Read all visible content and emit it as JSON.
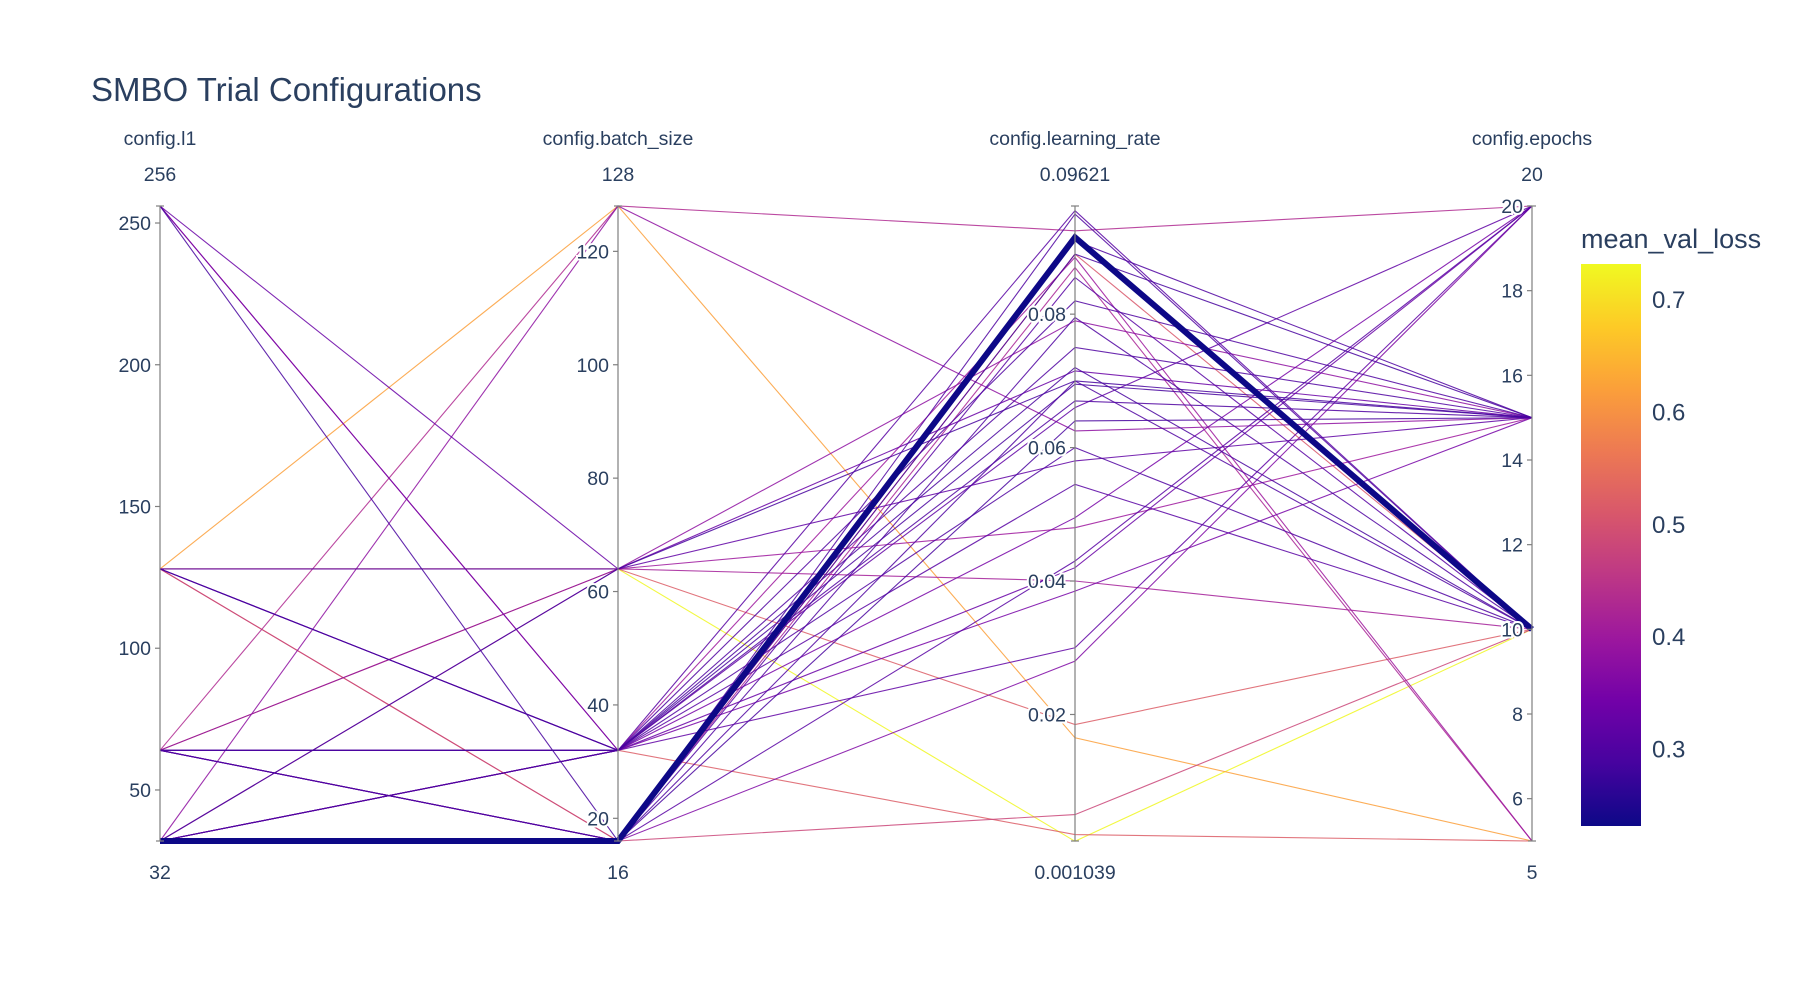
{
  "chart_data": {
    "type": "parallel_coordinates",
    "title": "SMBO Trial Configurations",
    "color_variable": "mean_val_loss",
    "colorscale": "plasma",
    "color_range": [
      0.232,
      0.732
    ],
    "colorbar_ticks": [
      0.3,
      0.4,
      0.5,
      0.6,
      0.7
    ],
    "dimensions": [
      {
        "label": "config.l1",
        "range": [
          32,
          256
        ],
        "min_label": "32",
        "max_label": "256",
        "ticks": [
          50,
          100,
          150,
          200,
          250
        ]
      },
      {
        "label": "config.batch_size",
        "range": [
          16,
          128
        ],
        "min_label": "16",
        "max_label": "128",
        "ticks": [
          20,
          40,
          60,
          80,
          100,
          120
        ]
      },
      {
        "label": "config.learning_rate",
        "range": [
          0.001039,
          0.09621
        ],
        "min_label": "0.001039",
        "max_label": "0.09621",
        "ticks": [
          0.02,
          0.04,
          0.06,
          0.08
        ]
      },
      {
        "label": "config.epochs",
        "range": [
          5,
          20
        ],
        "min_label": "5",
        "max_label": "20",
        "ticks": [
          6,
          8,
          10,
          12,
          14,
          16,
          18,
          20
        ]
      }
    ],
    "highlighted_trial": 0,
    "trials": [
      {
        "l1": 32,
        "batch_size": 16,
        "learning_rate": 0.0915,
        "epochs": 10,
        "mean_val_loss": 0.232
      },
      {
        "l1": 32,
        "batch_size": 16,
        "learning_rate": 0.0795,
        "epochs": 10,
        "mean_val_loss": 0.3
      },
      {
        "l1": 32,
        "batch_size": 64,
        "learning_rate": 0.07,
        "epochs": 15,
        "mean_val_loss": 0.29
      },
      {
        "l1": 32,
        "batch_size": 128,
        "learning_rate": 0.0625,
        "epochs": 15,
        "mean_val_loss": 0.38
      },
      {
        "l1": 32,
        "batch_size": 32,
        "learning_rate": 0.0545,
        "epochs": 10,
        "mean_val_loss": 0.31
      },
      {
        "l1": 32,
        "batch_size": 32,
        "learning_rate": 0.042,
        "epochs": 20,
        "mean_val_loss": 0.33
      },
      {
        "l1": 64,
        "batch_size": 16,
        "learning_rate": 0.091,
        "epochs": 15,
        "mean_val_loss": 0.3
      },
      {
        "l1": 64,
        "batch_size": 16,
        "learning_rate": 0.0855,
        "epochs": 10,
        "mean_val_loss": 0.31
      },
      {
        "l1": 64,
        "batch_size": 32,
        "learning_rate": 0.075,
        "epochs": 15,
        "mean_val_loss": 0.3
      },
      {
        "l1": 64,
        "batch_size": 32,
        "learning_rate": 0.066,
        "epochs": 20,
        "mean_val_loss": 0.32
      },
      {
        "l1": 64,
        "batch_size": 128,
        "learning_rate": 0.0925,
        "epochs": 20,
        "mean_val_loss": 0.43
      },
      {
        "l1": 64,
        "batch_size": 64,
        "learning_rate": 0.0185,
        "epochs": 10,
        "mean_val_loss": 0.52
      },
      {
        "l1": 128,
        "batch_size": 32,
        "learning_rate": 0.0695,
        "epochs": 15,
        "mean_val_loss": 0.29
      },
      {
        "l1": 128,
        "batch_size": 32,
        "learning_rate": 0.0955,
        "epochs": 10,
        "mean_val_loss": 0.31
      },
      {
        "l1": 128,
        "batch_size": 64,
        "learning_rate": 0.058,
        "epochs": 15,
        "mean_val_loss": 0.32
      },
      {
        "l1": 128,
        "batch_size": 128,
        "learning_rate": 0.0165,
        "epochs": 5,
        "mean_val_loss": 0.62
      },
      {
        "l1": 128,
        "batch_size": 64,
        "learning_rate": 0.001,
        "epochs": 10,
        "mean_val_loss": 0.73
      },
      {
        "l1": 128,
        "batch_size": 16,
        "learning_rate": 0.005,
        "epochs": 10,
        "mean_val_loss": 0.48
      },
      {
        "l1": 256,
        "batch_size": 32,
        "learning_rate": 0.0885,
        "epochs": 5,
        "mean_val_loss": 0.4
      },
      {
        "l1": 256,
        "batch_size": 64,
        "learning_rate": 0.0715,
        "epochs": 15,
        "mean_val_loss": 0.33
      },
      {
        "l1": 256,
        "batch_size": 32,
        "learning_rate": 0.0495,
        "epochs": 20,
        "mean_val_loss": 0.35
      },
      {
        "l1": 256,
        "batch_size": 16,
        "learning_rate": 0.089,
        "epochs": 15,
        "mean_val_loss": 0.29
      },
      {
        "l1": 32,
        "batch_size": 16,
        "learning_rate": 0.028,
        "epochs": 20,
        "mean_val_loss": 0.36
      },
      {
        "l1": 32,
        "batch_size": 64,
        "learning_rate": 0.04,
        "epochs": 10,
        "mean_val_loss": 0.41
      },
      {
        "l1": 64,
        "batch_size": 16,
        "learning_rate": 0.087,
        "epochs": 5,
        "mean_val_loss": 0.42
      },
      {
        "l1": 128,
        "batch_size": 16,
        "learning_rate": 0.089,
        "epochs": 10,
        "mean_val_loss": 0.51
      },
      {
        "l1": 64,
        "batch_size": 32,
        "learning_rate": 0.072,
        "epochs": 10,
        "mean_val_loss": 0.29
      },
      {
        "l1": 32,
        "batch_size": 32,
        "learning_rate": 0.0385,
        "epochs": 15,
        "mean_val_loss": 0.35
      },
      {
        "l1": 64,
        "batch_size": 64,
        "learning_rate": 0.079,
        "epochs": 15,
        "mean_val_loss": 0.38
      },
      {
        "l1": 128,
        "batch_size": 64,
        "learning_rate": 0.048,
        "epochs": 15,
        "mean_val_loss": 0.4
      },
      {
        "l1": 64,
        "batch_size": 16,
        "learning_rate": 0.043,
        "epochs": 20,
        "mean_val_loss": 0.31
      },
      {
        "l1": 32,
        "batch_size": 32,
        "learning_rate": 0.06,
        "epochs": 10,
        "mean_val_loss": 0.3
      },
      {
        "l1": 32,
        "batch_size": 32,
        "learning_rate": 0.002,
        "epochs": 5,
        "mean_val_loss": 0.52
      },
      {
        "l1": 64,
        "batch_size": 32,
        "learning_rate": 0.082,
        "epochs": 15,
        "mean_val_loss": 0.3
      },
      {
        "l1": 64,
        "batch_size": 16,
        "learning_rate": 0.07,
        "epochs": 10,
        "mean_val_loss": 0.3
      },
      {
        "l1": 128,
        "batch_size": 32,
        "learning_rate": 0.03,
        "epochs": 20,
        "mean_val_loss": 0.32
      },
      {
        "l1": 32,
        "batch_size": 16,
        "learning_rate": 0.064,
        "epochs": 15,
        "mean_val_loss": 0.29
      },
      {
        "l1": 32,
        "batch_size": 16,
        "learning_rate": 0.095,
        "epochs": 10,
        "mean_val_loss": 0.3
      },
      {
        "l1": 32,
        "batch_size": 32,
        "learning_rate": 0.067,
        "epochs": 15,
        "mean_val_loss": 0.3
      }
    ]
  }
}
